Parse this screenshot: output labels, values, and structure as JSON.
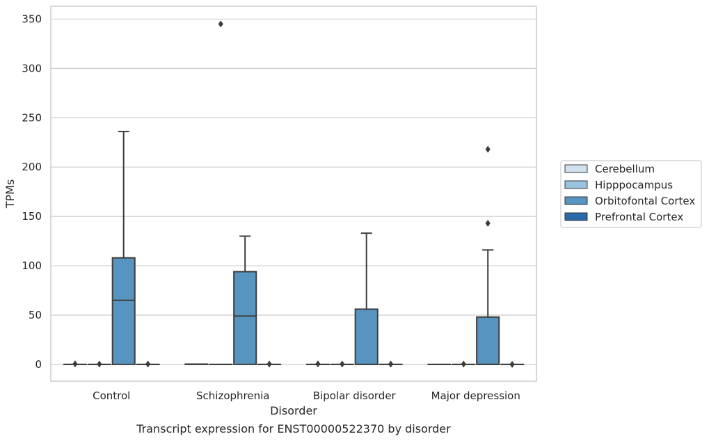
{
  "chart_data": {
    "type": "box",
    "caption": "Transcript expression for ENST00000522370 by disorder",
    "xlabel": "Disorder",
    "ylabel": "TPMs",
    "ylim": [
      -17,
      363
    ],
    "yticks": [
      0,
      50,
      100,
      150,
      200,
      250,
      300,
      350
    ],
    "grid": "horizontal",
    "legend_position": "right",
    "categories": [
      "Control",
      "Schizophrenia",
      "Bipolar disorder",
      "Major depression"
    ],
    "series": [
      {
        "name": "Cerebellum",
        "color": "#d1e1ef",
        "boxes": [
          {
            "q1": 0,
            "median": 0,
            "q3": 0,
            "whisker_low": 0,
            "whisker_high": 0,
            "outliers": [
              0.5
            ]
          },
          {
            "q1": 0,
            "median": 0,
            "q3": 0.3,
            "whisker_low": 0,
            "whisker_high": 0.3,
            "outliers": []
          },
          {
            "q1": 0,
            "median": 0,
            "q3": 0,
            "whisker_low": 0,
            "whisker_high": 0,
            "outliers": [
              0.5
            ]
          },
          {
            "q1": 0,
            "median": 0,
            "q3": 0,
            "whisker_low": 0,
            "whisker_high": 0,
            "outliers": []
          }
        ]
      },
      {
        "name": "Hipppocampus",
        "color": "#9ac3dd",
        "boxes": [
          {
            "q1": 0,
            "median": 0,
            "q3": 0,
            "whisker_low": 0,
            "whisker_high": 0,
            "outliers": [
              0.4
            ]
          },
          {
            "q1": 0,
            "median": 0,
            "q3": 0,
            "whisker_low": 0,
            "whisker_high": 0,
            "outliers": [
              345
            ]
          },
          {
            "q1": 0,
            "median": 0,
            "q3": 0,
            "whisker_low": 0,
            "whisker_high": 0,
            "outliers": [
              0.4
            ]
          },
          {
            "q1": 0,
            "median": 0,
            "q3": 0,
            "whisker_low": 0,
            "whisker_high": 0,
            "outliers": [
              0.4
            ]
          }
        ]
      },
      {
        "name": "Orbitofontal Cortex",
        "color": "#5795c0",
        "boxes": [
          {
            "q1": 0,
            "median": 65,
            "q3": 108,
            "whisker_low": 0,
            "whisker_high": 236,
            "outliers": []
          },
          {
            "q1": 0,
            "median": 49,
            "q3": 94,
            "whisker_low": 0,
            "whisker_high": 130,
            "outliers": []
          },
          {
            "q1": 0,
            "median": 0,
            "q3": 56,
            "whisker_low": 0,
            "whisker_high": 133,
            "outliers": []
          },
          {
            "q1": 0,
            "median": 0,
            "q3": 48,
            "whisker_low": 0,
            "whisker_high": 116,
            "outliers": [
              218,
              143
            ]
          }
        ]
      },
      {
        "name": "Prefrontal Cortex",
        "color": "#2b6aa9",
        "boxes": [
          {
            "q1": 0,
            "median": 0,
            "q3": 0,
            "whisker_low": 0,
            "whisker_high": 0,
            "outliers": [
              0.4
            ]
          },
          {
            "q1": 0,
            "median": 0,
            "q3": 0,
            "whisker_low": 0,
            "whisker_high": 0,
            "outliers": [
              0.4
            ]
          },
          {
            "q1": 0,
            "median": 0,
            "q3": 0,
            "whisker_low": 0,
            "whisker_high": 0,
            "outliers": [
              0.4
            ]
          },
          {
            "q1": 0,
            "median": 0,
            "q3": 0,
            "whisker_low": 0,
            "whisker_high": 0,
            "outliers": [
              0
            ]
          }
        ]
      }
    ]
  }
}
